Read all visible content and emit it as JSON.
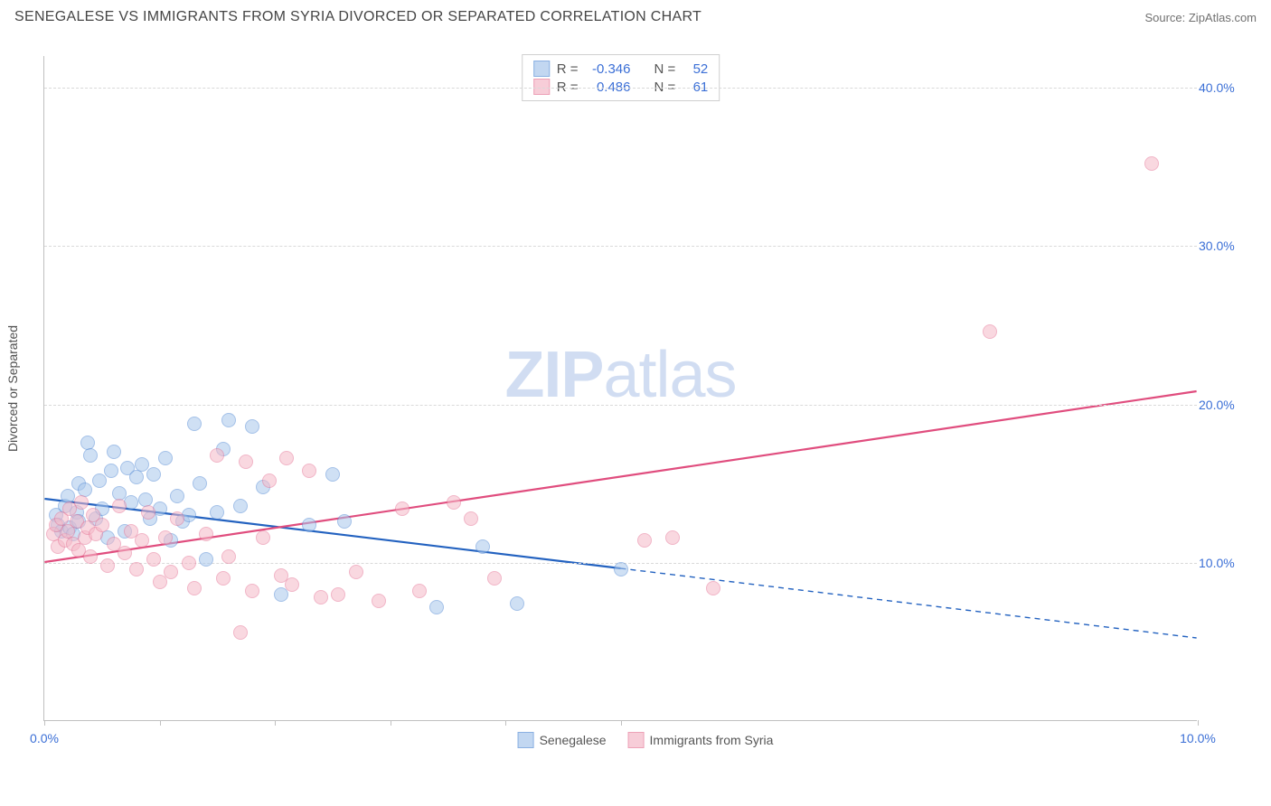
{
  "header": {
    "title": "SENEGALESE VS IMMIGRANTS FROM SYRIA DIVORCED OR SEPARATED CORRELATION CHART",
    "source": "Source: ZipAtlas.com"
  },
  "watermark": {
    "zip": "ZIP",
    "atlas": "atlas"
  },
  "chart": {
    "type": "scatter",
    "y_axis_title": "Divorced or Separated",
    "background_color": "#ffffff",
    "grid_color": "#d9d9d9",
    "axis_color": "#c0c0c0",
    "tick_label_color": "#3b6fd6",
    "xlim": [
      0,
      10
    ],
    "ylim": [
      0,
      42
    ],
    "x_ticks": [
      0,
      1,
      2,
      3,
      4,
      5,
      10
    ],
    "x_tick_labels": {
      "0": "0.0%",
      "10": "10.0%"
    },
    "y_grid": [
      10,
      20,
      30,
      40
    ],
    "y_tick_labels": {
      "10": "10.0%",
      "20": "20.0%",
      "30": "30.0%",
      "40": "40.0%"
    },
    "point_radius": 8,
    "series": [
      {
        "name": "Senegalese",
        "fill": "#a9c7ec",
        "stroke": "#5a8fd6",
        "fill_opacity": 0.55,
        "line_color": "#2362c0",
        "line_width": 2.2,
        "R": "-0.346",
        "N": "52",
        "trend": {
          "x1": 0.0,
          "y1": 14.0,
          "x2": 5.0,
          "y2": 9.6,
          "dash_x2": 10.0,
          "dash_y2": 5.2
        },
        "points": [
          [
            0.1,
            13.0
          ],
          [
            0.12,
            12.4
          ],
          [
            0.15,
            12.0
          ],
          [
            0.18,
            13.6
          ],
          [
            0.2,
            14.2
          ],
          [
            0.22,
            12.2
          ],
          [
            0.25,
            11.8
          ],
          [
            0.28,
            13.2
          ],
          [
            0.3,
            12.6
          ],
          [
            0.3,
            15.0
          ],
          [
            0.35,
            14.6
          ],
          [
            0.38,
            17.6
          ],
          [
            0.4,
            16.8
          ],
          [
            0.45,
            12.8
          ],
          [
            0.48,
            15.2
          ],
          [
            0.5,
            13.4
          ],
          [
            0.55,
            11.6
          ],
          [
            0.58,
            15.8
          ],
          [
            0.6,
            17.0
          ],
          [
            0.65,
            14.4
          ],
          [
            0.7,
            12.0
          ],
          [
            0.72,
            16.0
          ],
          [
            0.75,
            13.8
          ],
          [
            0.8,
            15.4
          ],
          [
            0.85,
            16.2
          ],
          [
            0.88,
            14.0
          ],
          [
            0.92,
            12.8
          ],
          [
            0.95,
            15.6
          ],
          [
            1.0,
            13.4
          ],
          [
            1.05,
            16.6
          ],
          [
            1.1,
            11.4
          ],
          [
            1.15,
            14.2
          ],
          [
            1.2,
            12.6
          ],
          [
            1.25,
            13.0
          ],
          [
            1.3,
            18.8
          ],
          [
            1.35,
            15.0
          ],
          [
            1.4,
            10.2
          ],
          [
            1.5,
            13.2
          ],
          [
            1.55,
            17.2
          ],
          [
            1.6,
            19.0
          ],
          [
            1.7,
            13.6
          ],
          [
            1.8,
            18.6
          ],
          [
            1.9,
            14.8
          ],
          [
            2.05,
            8.0
          ],
          [
            2.3,
            12.4
          ],
          [
            2.5,
            15.6
          ],
          [
            2.6,
            12.6
          ],
          [
            3.4,
            7.2
          ],
          [
            3.8,
            11.0
          ],
          [
            4.1,
            7.4
          ],
          [
            5.0,
            9.6
          ]
        ]
      },
      {
        "name": "Immigrants from Syria",
        "fill": "#f5b9c8",
        "stroke": "#e67a9a",
        "fill_opacity": 0.55,
        "line_color": "#e04d7e",
        "line_width": 2.2,
        "R": "0.486",
        "N": "61",
        "trend": {
          "x1": 0.0,
          "y1": 10.0,
          "x2": 10.0,
          "y2": 20.8
        },
        "points": [
          [
            0.08,
            11.8
          ],
          [
            0.1,
            12.4
          ],
          [
            0.12,
            11.0
          ],
          [
            0.15,
            12.8
          ],
          [
            0.18,
            11.4
          ],
          [
            0.2,
            12.0
          ],
          [
            0.22,
            13.4
          ],
          [
            0.25,
            11.2
          ],
          [
            0.28,
            12.6
          ],
          [
            0.3,
            10.8
          ],
          [
            0.32,
            13.8
          ],
          [
            0.35,
            11.6
          ],
          [
            0.38,
            12.2
          ],
          [
            0.4,
            10.4
          ],
          [
            0.42,
            13.0
          ],
          [
            0.45,
            11.8
          ],
          [
            0.5,
            12.4
          ],
          [
            0.55,
            9.8
          ],
          [
            0.6,
            11.2
          ],
          [
            0.65,
            13.6
          ],
          [
            0.7,
            10.6
          ],
          [
            0.75,
            12.0
          ],
          [
            0.8,
            9.6
          ],
          [
            0.85,
            11.4
          ],
          [
            0.9,
            13.2
          ],
          [
            0.95,
            10.2
          ],
          [
            1.0,
            8.8
          ],
          [
            1.05,
            11.6
          ],
          [
            1.1,
            9.4
          ],
          [
            1.15,
            12.8
          ],
          [
            1.25,
            10.0
          ],
          [
            1.3,
            8.4
          ],
          [
            1.4,
            11.8
          ],
          [
            1.5,
            16.8
          ],
          [
            1.55,
            9.0
          ],
          [
            1.6,
            10.4
          ],
          [
            1.7,
            5.6
          ],
          [
            1.75,
            16.4
          ],
          [
            1.8,
            8.2
          ],
          [
            1.9,
            11.6
          ],
          [
            1.95,
            15.2
          ],
          [
            2.05,
            9.2
          ],
          [
            2.1,
            16.6
          ],
          [
            2.15,
            8.6
          ],
          [
            2.3,
            15.8
          ],
          [
            2.4,
            7.8
          ],
          [
            2.55,
            8.0
          ],
          [
            2.7,
            9.4
          ],
          [
            2.9,
            7.6
          ],
          [
            3.1,
            13.4
          ],
          [
            3.25,
            8.2
          ],
          [
            3.55,
            13.8
          ],
          [
            3.7,
            12.8
          ],
          [
            3.9,
            9.0
          ],
          [
            5.2,
            11.4
          ],
          [
            5.45,
            11.6
          ],
          [
            5.8,
            8.4
          ],
          [
            8.2,
            24.6
          ],
          [
            9.6,
            35.2
          ]
        ]
      }
    ],
    "top_legend_labels": {
      "R": "R =",
      "N": "N ="
    },
    "bottom_legend_labels": [
      "Senegalese",
      "Immigrants from Syria"
    ]
  }
}
